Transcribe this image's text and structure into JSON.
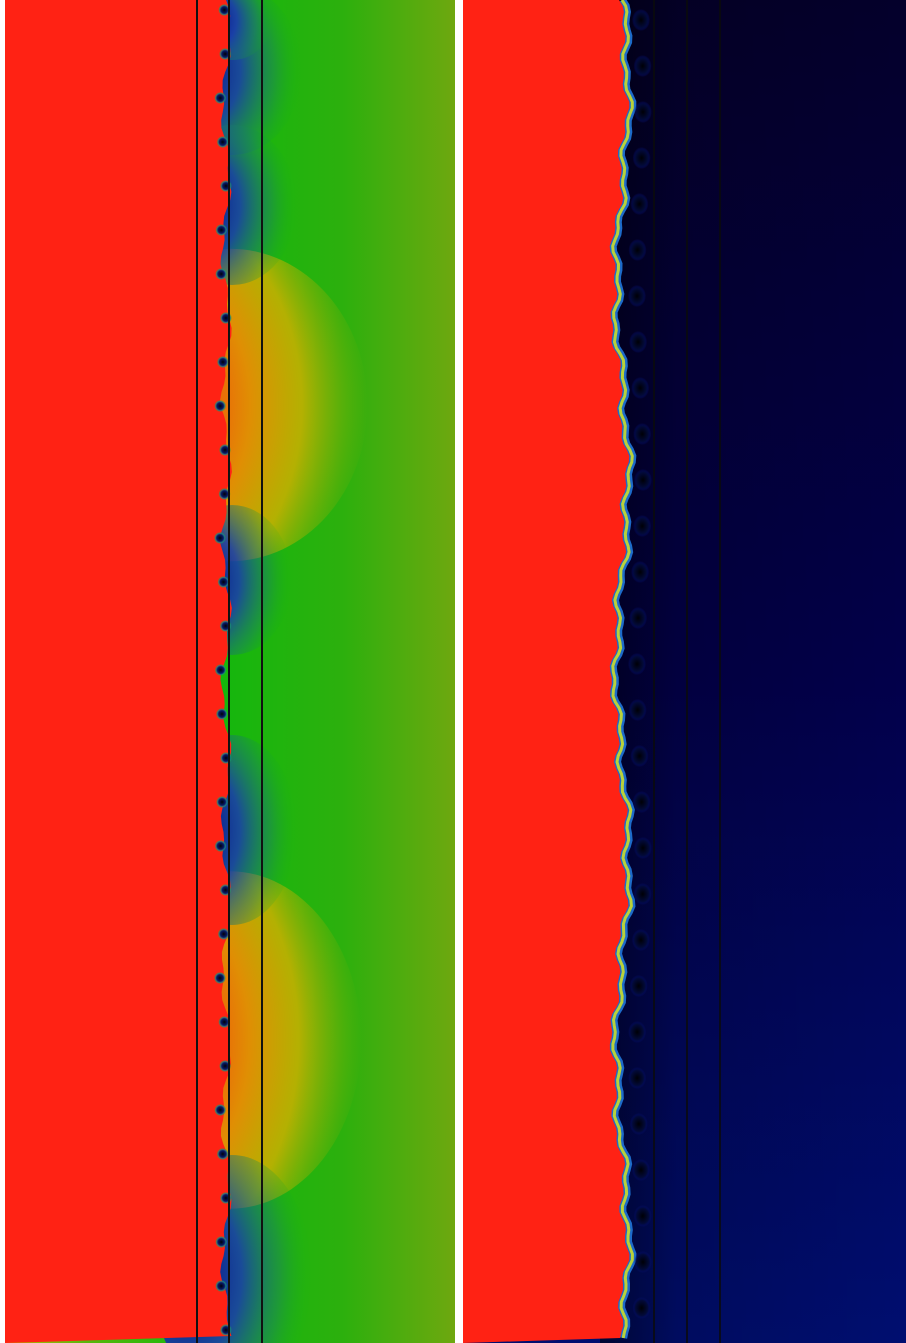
{
  "figure": {
    "panels": [
      {
        "name": "left-panel",
        "colormap": "red-yellow-green-blue",
        "colors": {
          "background_left": "#ff2214",
          "field_green": "#12b80d",
          "field_yellow": "#cdb000",
          "field_blue": "#0a1fa6",
          "vertical_lines": "#111111"
        },
        "dark_core_count": 6,
        "red_lobe_count": 2,
        "vertical_line_count": 3
      },
      {
        "name": "right-panel",
        "colormap": "red-dark-blue",
        "colors": {
          "background_left": "#ff2214",
          "field_top": "#04002b",
          "field_bottom": "#000e70",
          "vertical_lines": "#0b0b0b",
          "interface_edge": "#1d6bc9"
        },
        "vertical_line_count": 3
      }
    ],
    "separator_color": "#ffffff"
  }
}
